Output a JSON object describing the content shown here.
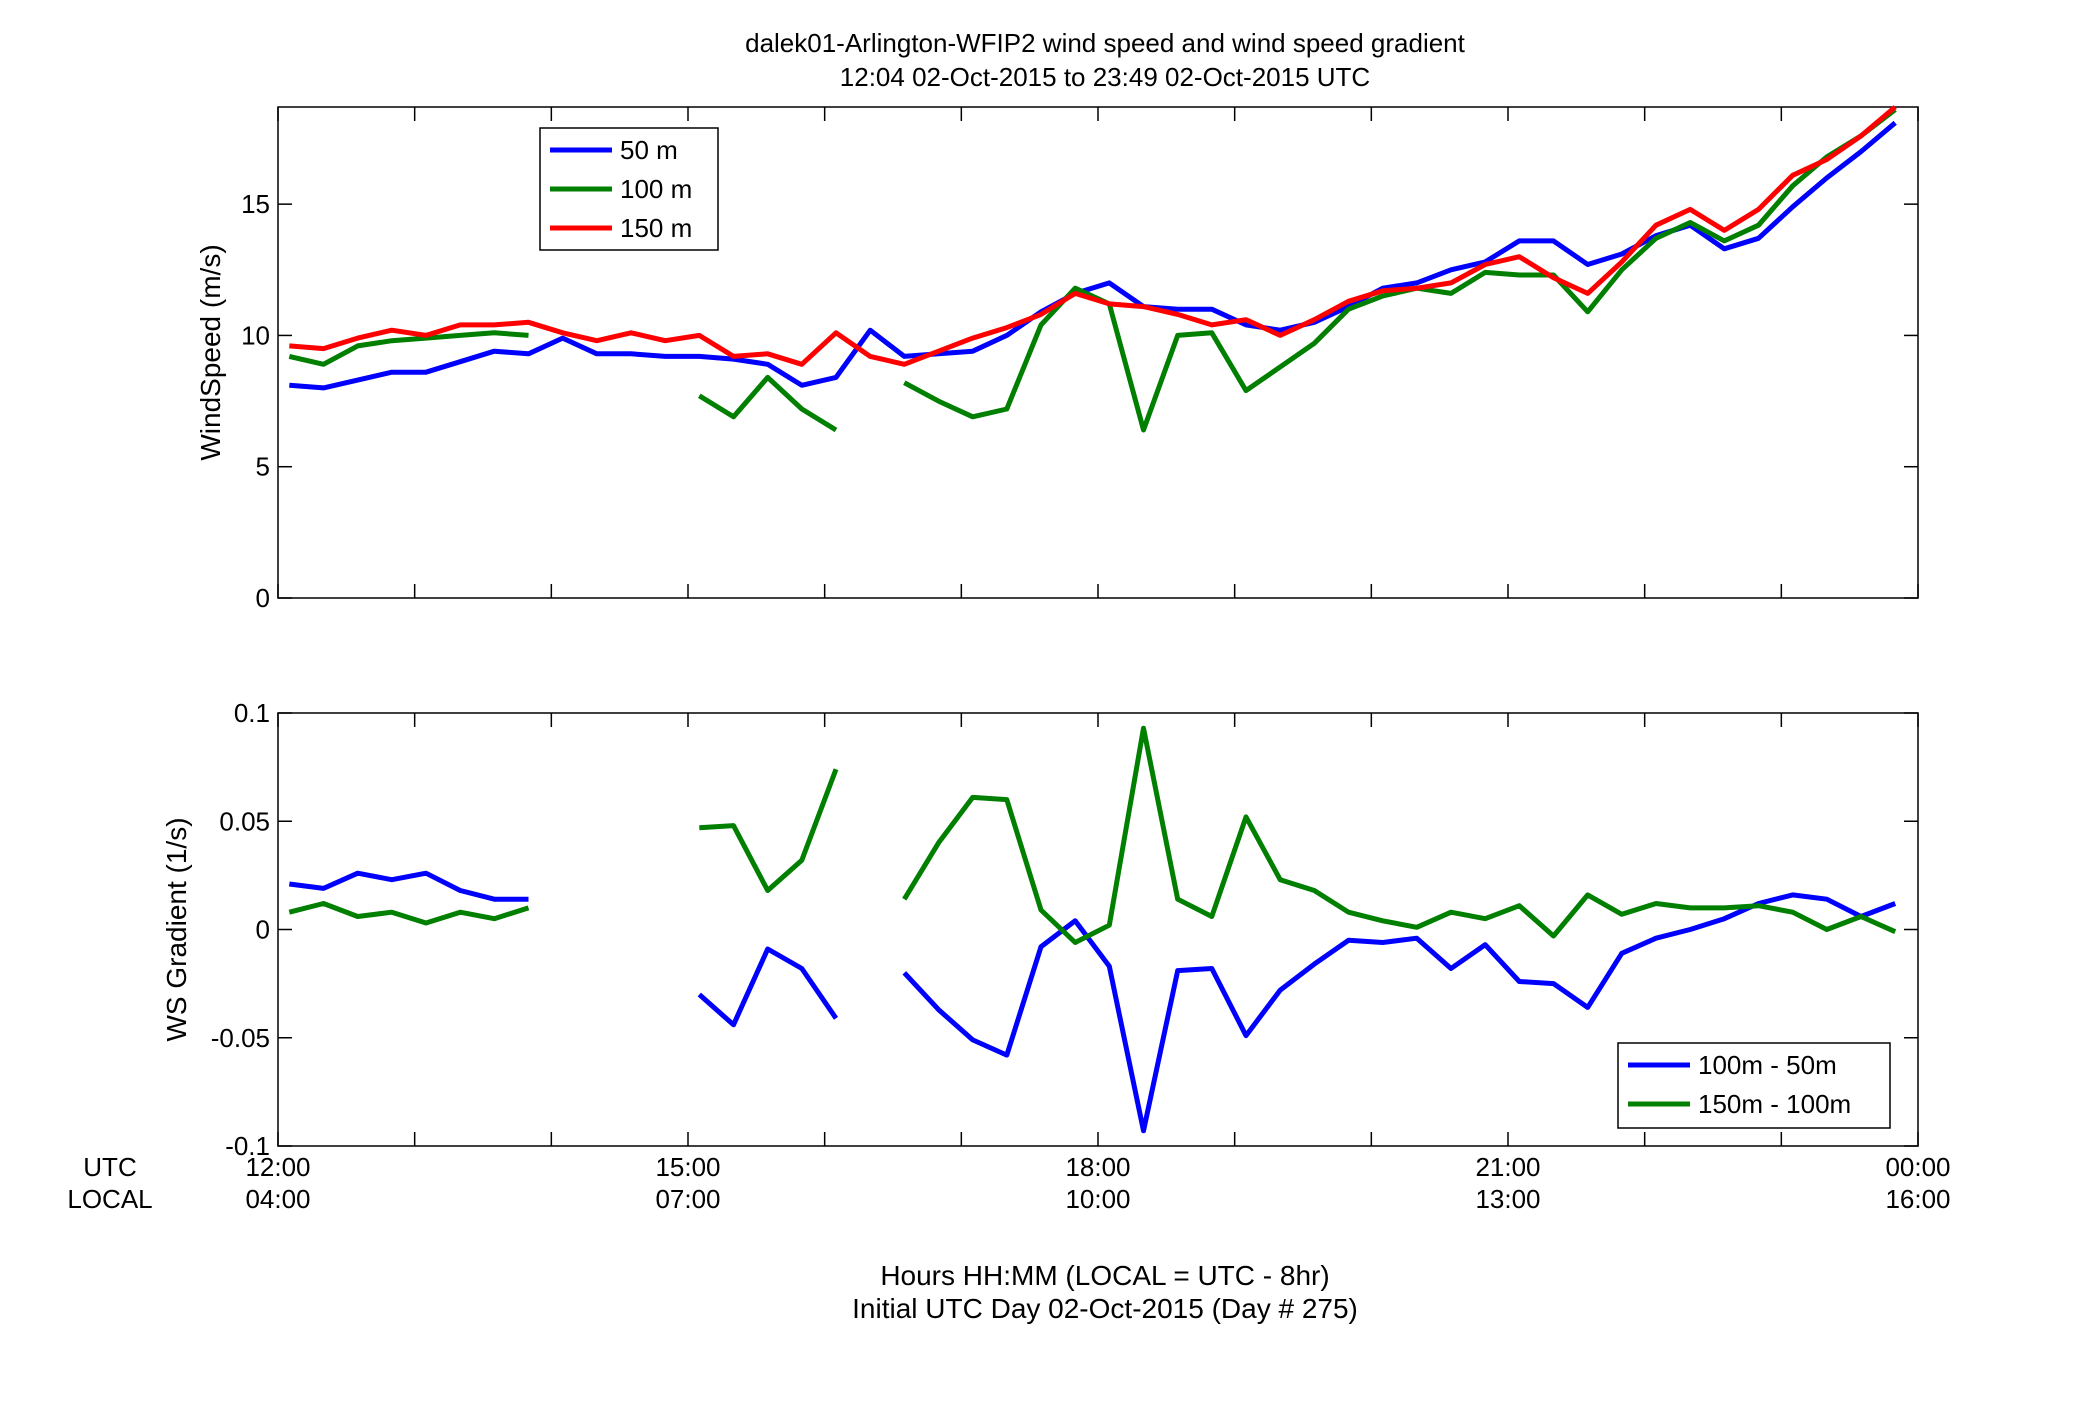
{
  "figure": {
    "title_line1": "dalek01-Arlington-WFIP2  wind speed and wind speed gradient",
    "title_line2": "12:04 02-Oct-2015 to 23:49 02-Oct-2015  UTC",
    "utc_row_label": "UTC",
    "local_row_label": "LOCAL",
    "xlabel_line1": "Hours HH:MM  (LOCAL = UTC - 8hr)",
    "xlabel_line2": "Initial UTC Day 02-Oct-2015 (Day # 275)",
    "x_ticks_utc": [
      "12:00",
      "15:00",
      "18:00",
      "21:00",
      "00:00"
    ],
    "x_ticks_local": [
      "04:00",
      "07:00",
      "10:00",
      "13:00",
      "16:00"
    ]
  },
  "chart_data": [
    {
      "type": "line",
      "ylabel": "WindSpeed (m/s)",
      "xlim": [
        12,
        24
      ],
      "ylim": [
        0,
        18.7
      ],
      "yticks": [
        0,
        5,
        10,
        15
      ],
      "xticks": [
        12,
        15,
        18,
        21,
        24
      ],
      "legend_position": "top-left",
      "x": [
        12.083,
        12.333,
        12.583,
        12.833,
        13.083,
        13.333,
        13.583,
        13.833,
        14.083,
        14.333,
        14.583,
        14.833,
        15.083,
        15.333,
        15.583,
        15.833,
        16.083,
        16.333,
        16.583,
        16.833,
        17.083,
        17.333,
        17.583,
        17.833,
        18.083,
        18.333,
        18.583,
        18.833,
        19.083,
        19.333,
        19.583,
        19.833,
        20.083,
        20.333,
        20.583,
        20.833,
        21.083,
        21.333,
        21.583,
        21.833,
        22.083,
        22.333,
        22.583,
        22.833,
        23.083,
        23.333,
        23.583,
        23.833
      ],
      "series": [
        {
          "name": "50 m",
          "color": "#0000ff",
          "values": [
            8.1,
            8.0,
            8.3,
            8.6,
            8.6,
            9.0,
            9.4,
            9.3,
            9.9,
            9.3,
            9.3,
            9.2,
            9.2,
            9.1,
            8.9,
            8.1,
            8.4,
            10.2,
            9.2,
            9.3,
            9.4,
            10.0,
            10.9,
            11.6,
            12.0,
            11.1,
            11.0,
            11.0,
            10.4,
            10.2,
            10.5,
            11.1,
            11.8,
            12.0,
            12.5,
            12.8,
            13.6,
            13.6,
            12.7,
            13.1,
            13.8,
            14.2,
            13.3,
            13.7,
            14.9,
            16.0,
            17.0,
            18.1
          ]
        },
        {
          "name": "100 m",
          "color": "#007f00",
          "values": [
            9.2,
            8.9,
            9.6,
            9.8,
            9.9,
            10.0,
            10.1,
            10.0,
            null,
            null,
            null,
            null,
            7.7,
            6.9,
            8.4,
            7.2,
            6.4,
            null,
            8.2,
            7.5,
            6.9,
            7.2,
            10.4,
            11.8,
            11.2,
            6.4,
            10.0,
            10.1,
            7.9,
            8.8,
            9.7,
            11.0,
            11.5,
            11.8,
            11.6,
            12.4,
            12.3,
            12.3,
            10.9,
            12.5,
            13.7,
            14.3,
            13.6,
            14.2,
            15.7,
            16.8,
            17.6,
            18.6
          ]
        },
        {
          "name": "150 m",
          "color": "#ff0000",
          "values": [
            9.6,
            9.5,
            9.9,
            10.2,
            10.0,
            10.4,
            10.4,
            10.5,
            10.1,
            9.8,
            10.1,
            9.8,
            10.0,
            9.2,
            9.3,
            8.9,
            10.1,
            9.2,
            8.9,
            9.4,
            9.9,
            10.3,
            10.8,
            11.6,
            11.2,
            11.1,
            10.8,
            10.4,
            10.6,
            10.0,
            10.6,
            11.3,
            11.7,
            11.8,
            12.0,
            12.7,
            13.0,
            12.2,
            11.6,
            12.8,
            14.2,
            14.8,
            14.0,
            14.8,
            16.1,
            16.7,
            17.6,
            18.7
          ]
        }
      ]
    },
    {
      "type": "line",
      "ylabel": "WS Gradient (1/s)",
      "xlim": [
        12,
        24
      ],
      "ylim": [
        -0.1,
        0.1
      ],
      "yticks": [
        -0.1,
        -0.05,
        0,
        0.05,
        0.1
      ],
      "ytick_labels": [
        "-0.1",
        "-0.05",
        "0",
        "0.05",
        "0.1"
      ],
      "xticks": [
        12,
        15,
        18,
        21,
        24
      ],
      "legend_position": "bottom-right",
      "x": [
        12.083,
        12.333,
        12.583,
        12.833,
        13.083,
        13.333,
        13.583,
        13.833,
        14.083,
        14.333,
        14.583,
        14.833,
        15.083,
        15.333,
        15.583,
        15.833,
        16.083,
        16.333,
        16.583,
        16.833,
        17.083,
        17.333,
        17.583,
        17.833,
        18.083,
        18.333,
        18.583,
        18.833,
        19.083,
        19.333,
        19.583,
        19.833,
        20.083,
        20.333,
        20.583,
        20.833,
        21.083,
        21.333,
        21.583,
        21.833,
        22.083,
        22.333,
        22.583,
        22.833,
        23.083,
        23.333,
        23.583,
        23.833
      ],
      "series": [
        {
          "name": "100m - 50m",
          "color": "#0000ff",
          "values": [
            0.021,
            0.019,
            0.026,
            0.023,
            0.026,
            0.018,
            0.014,
            0.014,
            null,
            null,
            null,
            null,
            -0.03,
            -0.044,
            -0.009,
            -0.018,
            -0.041,
            null,
            -0.02,
            -0.037,
            -0.051,
            -0.058,
            -0.008,
            0.004,
            -0.017,
            -0.093,
            -0.019,
            -0.018,
            -0.049,
            -0.028,
            -0.016,
            -0.005,
            -0.006,
            -0.004,
            -0.018,
            -0.007,
            -0.024,
            -0.025,
            -0.036,
            -0.011,
            -0.004,
            0.0,
            0.005,
            0.012,
            0.016,
            0.014,
            0.006,
            0.012
          ]
        },
        {
          "name": "150m - 100m",
          "color": "#007f00",
          "values": [
            0.008,
            0.012,
            0.006,
            0.008,
            0.003,
            0.008,
            0.005,
            0.01,
            null,
            null,
            null,
            null,
            0.047,
            0.048,
            0.018,
            0.032,
            0.074,
            null,
            0.014,
            0.04,
            0.061,
            0.06,
            0.009,
            -0.006,
            0.002,
            0.093,
            0.014,
            0.006,
            0.052,
            0.023,
            0.018,
            0.008,
            0.004,
            0.001,
            0.008,
            0.005,
            0.011,
            -0.003,
            0.016,
            0.007,
            0.012,
            0.01,
            0.01,
            0.011,
            0.008,
            0.0,
            0.006,
            -0.001
          ]
        }
      ]
    }
  ]
}
